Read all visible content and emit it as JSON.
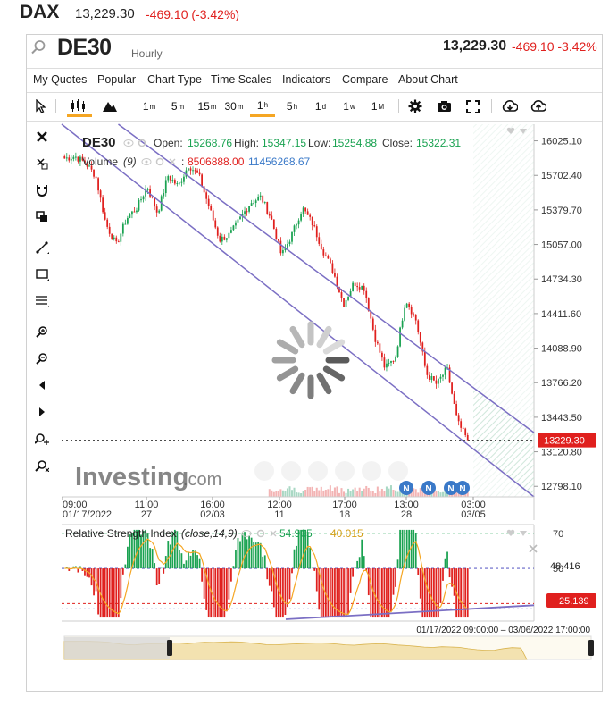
{
  "top": {
    "symbol": "DAX",
    "price": "13,229.30",
    "change": "-469.10 (-3.42%)"
  },
  "header": {
    "symbol": "DE30",
    "interval": "Hourly",
    "price": "13,229.30",
    "change": "-469.10",
    "change_pct": "-3.42%"
  },
  "menu": [
    "My Quotes",
    "Popular",
    "Chart Type",
    "Time Scales",
    "Indicators",
    "Compare",
    "About Chart"
  ],
  "toolbar": {
    "timeframes": [
      {
        "base": "1",
        "sup": "m"
      },
      {
        "base": "5",
        "sup": "m"
      },
      {
        "base": "15",
        "sup": "m"
      },
      {
        "base": "30",
        "sup": "m"
      },
      {
        "base": "1",
        "sup": "h"
      },
      {
        "base": "5",
        "sup": "h"
      },
      {
        "base": "1",
        "sup": "d"
      },
      {
        "base": "1",
        "sup": "w"
      },
      {
        "base": "1",
        "sup": "M"
      }
    ],
    "active_timeframe": "1h"
  },
  "legend": {
    "symbol": "DE30",
    "open_label": "Open:",
    "open": "15268.76",
    "high_label": "High:",
    "high": "15347.15",
    "low_label": "Low:",
    "low": "15254.88",
    "close_label": "Close:",
    "close": "15322.31",
    "volume_label": "Volume",
    "volume_param": "(9)",
    "volume_sep": ":",
    "volume_value": "8506888.00",
    "volume_ma": "11456268.67"
  },
  "watermark": {
    "brand": "Investing",
    "suffix": ".com"
  },
  "chart_data": [
    {
      "type": "candlestick",
      "y_ticks": [
        "16025.10",
        "15702.40",
        "15379.70",
        "15057.00",
        "14734.30",
        "14411.60",
        "14088.90",
        "13766.20",
        "13443.50",
        "13120.80",
        "12798.10"
      ],
      "ylim": [
        12700,
        16180
      ],
      "last_price_label": "13229.30",
      "last_price": 13229.3,
      "x_ticks": [
        {
          "time": "09:00",
          "date": "01/17/2022"
        },
        {
          "time": "11:00",
          "date": "27"
        },
        {
          "time": "16:00",
          "date": "02/03"
        },
        {
          "time": "12:00",
          "date": "11"
        },
        {
          "time": "17:00",
          "date": "18"
        },
        {
          "time": "13:00",
          "date": "28"
        },
        {
          "time": "03:00",
          "date": "03/05"
        }
      ],
      "close_path": [
        15860,
        15880,
        15820,
        15700,
        15250,
        15050,
        15300,
        15400,
        15600,
        15350,
        15700,
        15600,
        15800,
        15700,
        15400,
        15100,
        15150,
        15300,
        15450,
        15500,
        15300,
        14950,
        15150,
        15400,
        15250,
        15000,
        14800,
        14500,
        14700,
        14650,
        14200,
        13900,
        14000,
        14550,
        14350,
        13850,
        13750,
        13900,
        13400,
        13229.3
      ],
      "channel_lines": [
        {
          "label": "upper",
          "from": [
            0.12,
            16180
          ],
          "to": [
            1.0,
            13300
          ]
        },
        {
          "label": "lower",
          "from": [
            0.0,
            16180
          ],
          "to": [
            1.0,
            12700
          ]
        }
      ],
      "event_badges": [
        "N",
        "N",
        "N",
        "N"
      ]
    },
    {
      "type": "line",
      "title": "Relative Strength Index",
      "params": "(close,14,9)",
      "value": "54.965",
      "signal": "40.015",
      "y_ticks": [
        "70",
        "50",
        "30"
      ],
      "ylim": [
        20,
        75
      ],
      "current_labels": [
        "48.416",
        "25.139"
      ],
      "levels": [
        70,
        50,
        30
      ]
    }
  ],
  "navigator": {
    "range": "01/17/2022 09:00:00 – 03/06/2022 17:00:00"
  },
  "colors": {
    "up": "#1aa251",
    "down": "#e0201e",
    "channel": "#7b6fc4",
    "accent": "#f5a623",
    "volume_up": "#a9d8c4",
    "volume_down": "#f3b4b4"
  }
}
